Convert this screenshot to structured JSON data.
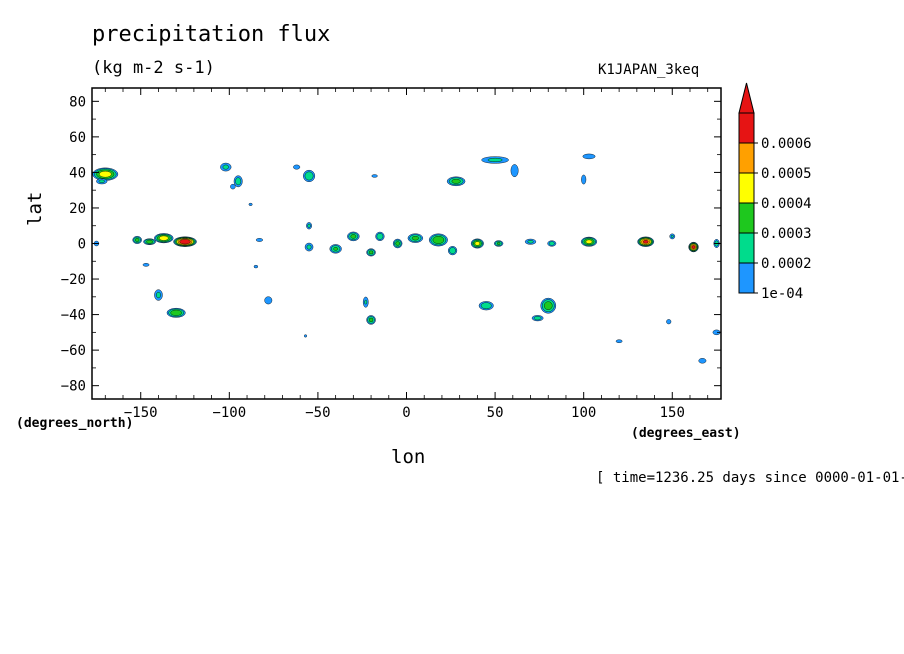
{
  "chart_data": {
    "type": "heatmap",
    "title": "precipitation flux",
    "units": "(kg m-2 s-1)",
    "run_label": "K1JAPAN_3keq",
    "xlabel": "lon",
    "ylabel": "lat",
    "x_units": "(degrees_east)",
    "y_units": "(degrees_north)",
    "time_label": "[ time=1236.25 days since 0000-01-01-",
    "xlim": [
      -177.5,
      177.5
    ],
    "ylim": [
      -87.5,
      87.5
    ],
    "x_ticks": [
      -150,
      -100,
      -50,
      0,
      50,
      100,
      150
    ],
    "x_tick_labels": [
      "−150",
      "−100",
      "−50",
      "0",
      "50",
      "100",
      "150"
    ],
    "y_ticks": [
      80,
      60,
      40,
      20,
      0,
      -20,
      -40,
      -60,
      -80
    ],
    "y_tick_labels": [
      "80",
      "60",
      "40",
      "20",
      "0",
      "−20",
      "−40",
      "−60",
      "−80"
    ],
    "colorbar": {
      "levels": [
        0.0001,
        0.0002,
        0.0003,
        0.0004,
        0.0005,
        0.0006
      ],
      "labels": [
        "1e-04",
        "0.0002",
        "0.0003",
        "0.0004",
        "0.0005",
        "0.0006"
      ],
      "colors": [
        "#1e96ff",
        "#00dc8c",
        "#1ec81e",
        "#ffff00",
        "#ffa000",
        "#e61414"
      ],
      "extend": "max"
    },
    "features": [
      {
        "lon": -170,
        "lat": 39,
        "rlon": 8,
        "rlat": 4,
        "peak": 0.00045
      },
      {
        "lon": -172,
        "lat": 35,
        "rlon": 4,
        "rlat": 2,
        "peak": 0.00022
      },
      {
        "lon": -125,
        "lat": 1,
        "rlon": 7,
        "rlat": 3,
        "peak": 0.00068
      },
      {
        "lon": -137,
        "lat": 3,
        "rlon": 6,
        "rlat": 3,
        "peak": 0.00045
      },
      {
        "lon": -145,
        "lat": 1,
        "rlon": 4,
        "rlat": 2,
        "peak": 0.00035
      },
      {
        "lon": -152,
        "lat": 2,
        "rlon": 3,
        "rlat": 2.5,
        "peak": 0.00032
      },
      {
        "lon": -130,
        "lat": -39,
        "rlon": 6,
        "rlat": 3,
        "peak": 0.00038
      },
      {
        "lon": -140,
        "lat": -29,
        "rlon": 3,
        "rlat": 4,
        "peak": 0.00022
      },
      {
        "lon": -102,
        "lat": 43,
        "rlon": 4,
        "rlat": 3,
        "peak": 0.00022
      },
      {
        "lon": -95,
        "lat": 35,
        "rlon": 3,
        "rlat": 4,
        "peak": 0.00025
      },
      {
        "lon": -98,
        "lat": 32,
        "rlon": 2,
        "rlat": 2,
        "peak": 0.00018
      },
      {
        "lon": -55,
        "lat": 38,
        "rlon": 4,
        "rlat": 4,
        "peak": 0.00028
      },
      {
        "lon": -62,
        "lat": 43,
        "rlon": 3,
        "rlat": 2,
        "peak": 0.00015
      },
      {
        "lon": 28,
        "lat": 35,
        "rlon": 6,
        "rlat": 3,
        "peak": 0.00033
      },
      {
        "lon": 50,
        "lat": 47,
        "rlon": 10,
        "rlat": 2.5,
        "peak": 0.00022
      },
      {
        "lon": 61,
        "lat": 41,
        "rlon": 3,
        "rlat": 5,
        "peak": 0.00018
      },
      {
        "lon": 103,
        "lat": 49,
        "rlon": 5,
        "rlat": 2,
        "peak": 0.00018
      },
      {
        "lon": 100,
        "lat": 36,
        "rlon": 2,
        "rlat": 4,
        "peak": 0.00016
      },
      {
        "lon": -18,
        "lat": 38,
        "rlon": 3,
        "rlat": 1.5,
        "peak": 0.00013
      },
      {
        "lon": -55,
        "lat": 10,
        "rlon": 2,
        "rlat": 2.5,
        "peak": 0.00022
      },
      {
        "lon": -55,
        "lat": -2,
        "rlon": 3,
        "rlat": 3,
        "peak": 0.00022
      },
      {
        "lon": -40,
        "lat": -3,
        "rlon": 4,
        "rlat": 3,
        "peak": 0.0003
      },
      {
        "lon": -30,
        "lat": 4,
        "rlon": 4,
        "rlat": 3,
        "peak": 0.00032
      },
      {
        "lon": -20,
        "lat": -5,
        "rlon": 3,
        "rlat": 2.5,
        "peak": 0.00032
      },
      {
        "lon": -15,
        "lat": 4,
        "rlon": 3,
        "rlat": 3,
        "peak": 0.00028
      },
      {
        "lon": -5,
        "lat": 0,
        "rlon": 3,
        "rlat": 3,
        "peak": 0.00032
      },
      {
        "lon": 5,
        "lat": 3,
        "rlon": 5,
        "rlat": 3,
        "peak": 0.00032
      },
      {
        "lon": 18,
        "lat": 2,
        "rlon": 6,
        "rlat": 4,
        "peak": 0.00038
      },
      {
        "lon": 26,
        "lat": -4,
        "rlon": 3,
        "rlat": 3,
        "peak": 0.00028
      },
      {
        "lon": 40,
        "lat": 0,
        "rlon": 4,
        "rlat": 3,
        "peak": 0.00042
      },
      {
        "lon": 52,
        "lat": 0,
        "rlon": 3,
        "rlat": 2,
        "peak": 0.0003
      },
      {
        "lon": 70,
        "lat": 1,
        "rlon": 4,
        "rlat": 2,
        "peak": 0.00022
      },
      {
        "lon": 82,
        "lat": 0,
        "rlon": 3,
        "rlat": 2,
        "peak": 0.00025
      },
      {
        "lon": 103,
        "lat": 1,
        "rlon": 5,
        "rlat": 3,
        "peak": 0.00042
      },
      {
        "lon": 135,
        "lat": 1,
        "rlon": 5,
        "rlat": 3,
        "peak": 0.0006
      },
      {
        "lon": 162,
        "lat": -2,
        "rlon": 3,
        "rlat": 3,
        "peak": 0.00061
      },
      {
        "lon": 150,
        "lat": 4,
        "rlon": 2,
        "rlat": 2,
        "peak": 0.0002
      },
      {
        "lon": 175,
        "lat": 0,
        "rlon": 2,
        "rlat": 3,
        "peak": 0.00025
      },
      {
        "lon": -175,
        "lat": 0,
        "rlon": 2,
        "rlat": 2,
        "peak": 0.00018
      },
      {
        "lon": -83,
        "lat": 2,
        "rlon": 3,
        "rlat": 1.5,
        "peak": 0.00015
      },
      {
        "lon": -147,
        "lat": -12,
        "rlon": 3,
        "rlat": 1.5,
        "peak": 0.00014
      },
      {
        "lon": -85,
        "lat": -13,
        "rlon": 2,
        "rlat": 1.5,
        "peak": 0.00013
      },
      {
        "lon": -78,
        "lat": -32,
        "rlon": 3,
        "rlat": 3,
        "peak": 0.00018
      },
      {
        "lon": -20,
        "lat": -43,
        "rlon": 3,
        "rlat": 3,
        "peak": 0.00032
      },
      {
        "lon": -23,
        "lat": -33,
        "rlon": 2,
        "rlat": 4,
        "peak": 0.0002
      },
      {
        "lon": 45,
        "lat": -35,
        "rlon": 5,
        "rlat": 3,
        "peak": 0.00028
      },
      {
        "lon": 80,
        "lat": -35,
        "rlon": 5,
        "rlat": 5,
        "peak": 0.00035
      },
      {
        "lon": 74,
        "lat": -42,
        "rlon": 4,
        "rlat": 2,
        "peak": 0.00025
      },
      {
        "lon": 148,
        "lat": -44,
        "rlon": 2,
        "rlat": 2,
        "peak": 0.00016
      },
      {
        "lon": 120,
        "lat": -55,
        "rlon": 3,
        "rlat": 1.5,
        "peak": 0.00014
      },
      {
        "lon": 175,
        "lat": -50,
        "rlon": 3,
        "rlat": 2,
        "peak": 0.00018
      },
      {
        "lon": 167,
        "lat": -66,
        "rlon": 3,
        "rlat": 2,
        "peak": 0.00018
      },
      {
        "lon": -57,
        "lat": -52,
        "rlon": 1.5,
        "rlat": 1.5,
        "peak": 0.00012
      },
      {
        "lon": -88,
        "lat": 22,
        "rlon": 2,
        "rlat": 1.5,
        "peak": 0.00012
      }
    ]
  }
}
